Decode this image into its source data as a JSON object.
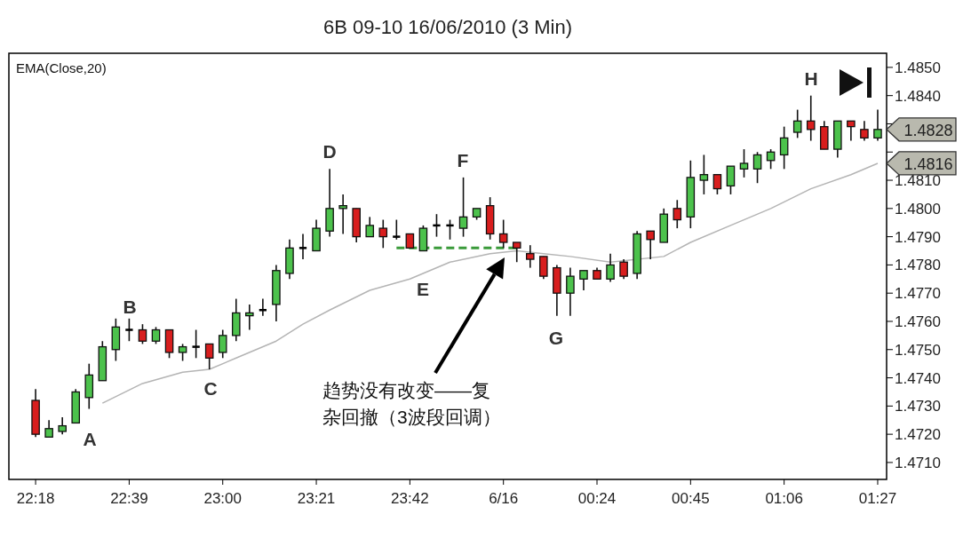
{
  "chart_data": {
    "type": "candlestick",
    "title": "6B 09-10  16/06/2010 (3 Min)",
    "x": [
      "2010-06-15T22:18",
      "2010-06-15T22:21",
      "2010-06-15T22:24",
      "2010-06-15T22:27",
      "2010-06-15T22:30",
      "2010-06-15T22:33",
      "2010-06-15T22:36",
      "2010-06-15T22:39",
      "2010-06-15T22:42",
      "2010-06-15T22:45",
      "2010-06-15T22:48",
      "2010-06-15T22:51",
      "2010-06-15T22:54",
      "2010-06-15T22:57",
      "2010-06-15T23:00",
      "2010-06-15T23:03",
      "2010-06-15T23:06",
      "2010-06-15T23:09",
      "2010-06-15T23:12",
      "2010-06-15T23:15",
      "2010-06-15T23:18",
      "2010-06-15T23:21",
      "2010-06-15T23:24",
      "2010-06-15T23:27",
      "2010-06-15T23:30",
      "2010-06-15T23:33",
      "2010-06-15T23:36",
      "2010-06-15T23:39",
      "2010-06-15T23:42",
      "2010-06-15T23:45",
      "2010-06-15T23:48",
      "2010-06-15T23:51",
      "2010-06-15T23:54",
      "2010-06-15T23:57",
      "2010-06-16T00:00",
      "2010-06-16T00:03",
      "2010-06-16T00:06",
      "2010-06-16T00:09",
      "2010-06-16T00:12",
      "2010-06-16T00:15",
      "2010-06-16T00:18",
      "2010-06-16T00:21",
      "2010-06-16T00:24",
      "2010-06-16T00:27",
      "2010-06-16T00:30",
      "2010-06-16T00:33",
      "2010-06-16T00:36",
      "2010-06-16T00:39",
      "2010-06-16T00:42",
      "2010-06-16T00:45",
      "2010-06-16T00:48",
      "2010-06-16T00:51",
      "2010-06-16T00:54",
      "2010-06-16T00:57",
      "2010-06-16T01:00",
      "2010-06-16T01:03",
      "2010-06-16T01:06",
      "2010-06-16T01:09",
      "2010-06-16T01:12",
      "2010-06-16T01:15",
      "2010-06-16T01:18",
      "2010-06-16T01:21",
      "2010-06-16T01:24",
      "2010-06-16T01:27"
    ],
    "ohlc": [
      [
        1.4732,
        1.4736,
        1.4719,
        1.472
      ],
      [
        1.4719,
        1.4725,
        1.4719,
        1.4722
      ],
      [
        1.4721,
        1.4726,
        1.472,
        1.4723
      ],
      [
        1.4724,
        1.4736,
        1.4724,
        1.4735
      ],
      [
        1.4733,
        1.4745,
        1.4729,
        1.4741
      ],
      [
        1.4739,
        1.4753,
        1.4739,
        1.4751
      ],
      [
        1.475,
        1.4761,
        1.4746,
        1.4758
      ],
      [
        1.4757,
        1.4761,
        1.4753,
        1.4757
      ],
      [
        1.4757,
        1.4759,
        1.4752,
        1.4753
      ],
      [
        1.4753,
        1.4758,
        1.4752,
        1.4757
      ],
      [
        1.4757,
        1.4757,
        1.4747,
        1.4749
      ],
      [
        1.4749,
        1.4752,
        1.4746,
        1.4751
      ],
      [
        1.4751,
        1.4757,
        1.4747,
        1.4751
      ],
      [
        1.4752,
        1.4752,
        1.4743,
        1.4747
      ],
      [
        1.4749,
        1.4757,
        1.4747,
        1.4755
      ],
      [
        1.4755,
        1.4768,
        1.4753,
        1.4763
      ],
      [
        1.4762,
        1.4766,
        1.4757,
        1.4763
      ],
      [
        1.4764,
        1.4768,
        1.4762,
        1.4764
      ],
      [
        1.4766,
        1.478,
        1.476,
        1.4778
      ],
      [
        1.4777,
        1.4789,
        1.4775,
        1.4786
      ],
      [
        1.4786,
        1.4791,
        1.4782,
        1.4786
      ],
      [
        1.4785,
        1.4796,
        1.4785,
        1.4793
      ],
      [
        1.4792,
        1.4814,
        1.479,
        1.48
      ],
      [
        1.48,
        1.4805,
        1.4791,
        1.4801
      ],
      [
        1.48,
        1.48,
        1.4788,
        1.479
      ],
      [
        1.479,
        1.4797,
        1.479,
        1.4794
      ],
      [
        1.4793,
        1.4796,
        1.4786,
        1.479
      ],
      [
        1.479,
        1.4796,
        1.4789,
        1.479
      ],
      [
        1.4791,
        1.4791,
        1.4786,
        1.4786
      ],
      [
        1.4785,
        1.4794,
        1.4785,
        1.4793
      ],
      [
        1.4794,
        1.4798,
        1.479,
        1.4794
      ],
      [
        1.4794,
        1.4796,
        1.4789,
        1.4794
      ],
      [
        1.4793,
        1.4811,
        1.479,
        1.4797
      ],
      [
        1.4797,
        1.48,
        1.4796,
        1.48
      ],
      [
        1.4801,
        1.4804,
        1.4789,
        1.4791
      ],
      [
        1.4791,
        1.4796,
        1.4786,
        1.4788
      ],
      [
        1.4788,
        1.4788,
        1.4781,
        1.4786
      ],
      [
        1.4784,
        1.4787,
        1.4779,
        1.4782
      ],
      [
        1.4783,
        1.4783,
        1.4775,
        1.4776
      ],
      [
        1.4779,
        1.478,
        1.4762,
        1.477
      ],
      [
        1.477,
        1.4779,
        1.4762,
        1.4776
      ],
      [
        1.4775,
        1.4778,
        1.4771,
        1.4778
      ],
      [
        1.4778,
        1.4779,
        1.4775,
        1.4775
      ],
      [
        1.4775,
        1.4784,
        1.4774,
        1.478
      ],
      [
        1.4781,
        1.4782,
        1.4775,
        1.4776
      ],
      [
        1.4777,
        1.4792,
        1.4775,
        1.4791
      ],
      [
        1.4792,
        1.4792,
        1.4782,
        1.4789
      ],
      [
        1.4788,
        1.48,
        1.4788,
        1.4798
      ],
      [
        1.48,
        1.4803,
        1.4793,
        1.4796
      ],
      [
        1.4797,
        1.4817,
        1.4793,
        1.4811
      ],
      [
        1.481,
        1.4819,
        1.4805,
        1.4812
      ],
      [
        1.4812,
        1.4812,
        1.4805,
        1.4807
      ],
      [
        1.4808,
        1.4815,
        1.4805,
        1.4815
      ],
      [
        1.4814,
        1.4821,
        1.4811,
        1.4816
      ],
      [
        1.4814,
        1.482,
        1.4809,
        1.4819
      ],
      [
        1.4817,
        1.4821,
        1.4814,
        1.482
      ],
      [
        1.4819,
        1.4829,
        1.4814,
        1.4825
      ],
      [
        1.4827,
        1.4835,
        1.4825,
        1.4831
      ],
      [
        1.4831,
        1.484,
        1.4824,
        1.4828
      ],
      [
        1.4829,
        1.4831,
        1.4821,
        1.4821
      ],
      [
        1.4821,
        1.4831,
        1.4818,
        1.4831
      ],
      [
        1.4831,
        1.4831,
        1.4824,
        1.4829
      ],
      [
        1.4828,
        1.4831,
        1.4824,
        1.4825
      ],
      [
        1.4825,
        1.4835,
        1.4824,
        1.4828
      ]
    ],
    "colors": [
      "#d81e1e",
      "#4cc24c",
      "#4cc24c",
      "#4cc24c",
      "#4cc24c",
      "#4cc24c",
      "#4cc24c",
      "#000000",
      "#d81e1e",
      "#4cc24c",
      "#d81e1e",
      "#4cc24c",
      "#000000",
      "#d81e1e",
      "#4cc24c",
      "#4cc24c",
      "#4cc24c",
      "#000000",
      "#4cc24c",
      "#4cc24c",
      "#000000",
      "#4cc24c",
      "#4cc24c",
      "#4cc24c",
      "#d81e1e",
      "#4cc24c",
      "#d81e1e",
      "#000000",
      "#d81e1e",
      "#4cc24c",
      "#000000",
      "#000000",
      "#4cc24c",
      "#4cc24c",
      "#d81e1e",
      "#d81e1e",
      "#d81e1e",
      "#d81e1e",
      "#d81e1e",
      "#d81e1e",
      "#4cc24c",
      "#4cc24c",
      "#d81e1e",
      "#4cc24c",
      "#d81e1e",
      "#4cc24c",
      "#d81e1e",
      "#4cc24c",
      "#d81e1e",
      "#4cc24c",
      "#4cc24c",
      "#d81e1e",
      "#4cc24c",
      "#4cc24c",
      "#4cc24c",
      "#4cc24c",
      "#4cc24c",
      "#4cc24c",
      "#d81e1e",
      "#d81e1e",
      "#4cc24c",
      "#d81e1e",
      "#d81e1e",
      "#4cc24c"
    ],
    "series": [
      {
        "type": "line",
        "name": "EMA(Close,20)",
        "color": "#b4b4b4",
        "x": [
          "2010-06-15T22:33",
          "2010-06-15T22:42",
          "2010-06-15T22:51",
          "2010-06-15T22:57",
          "2010-06-15T23:03",
          "2010-06-15T23:12",
          "2010-06-15T23:18",
          "2010-06-15T23:24",
          "2010-06-15T23:33",
          "2010-06-15T23:42",
          "2010-06-15T23:51",
          "2010-06-16T00:00",
          "2010-06-16T00:06",
          "2010-06-16T00:12",
          "2010-06-16T00:18",
          "2010-06-16T00:27",
          "2010-06-16T00:39",
          "2010-06-16T00:45",
          "2010-06-16T00:54",
          "2010-06-16T01:03",
          "2010-06-16T01:12",
          "2010-06-16T01:21",
          "2010-06-16T01:27"
        ],
        "values": [
          1.4731,
          1.4738,
          1.4742,
          1.4743,
          1.4747,
          1.4753,
          1.4759,
          1.4764,
          1.4771,
          1.4775,
          1.4781,
          1.4784,
          1.4785,
          1.4784,
          1.4783,
          1.4781,
          1.4783,
          1.4788,
          1.4794,
          1.48,
          1.4807,
          1.4812,
          1.4816
        ]
      },
      {
        "type": "line",
        "color": "#3a9a3a",
        "line_style": "dashed",
        "x": [
          "2010-06-15T23:39",
          "2010-06-16T00:06"
        ],
        "values": [
          1.4786,
          1.4786
        ]
      }
    ],
    "xlim": [
      "2010-06-15T22:12",
      "2010-06-16T01:29"
    ],
    "ylim": [
      1.4704,
      1.4855
    ],
    "xticks": [
      {
        "value": "2010-06-15T22:18",
        "label": "22:18"
      },
      {
        "value": "2010-06-15T22:39",
        "label": "22:39"
      },
      {
        "value": "2010-06-15T23:00",
        "label": "23:00"
      },
      {
        "value": "2010-06-15T23:21",
        "label": "23:21"
      },
      {
        "value": "2010-06-15T23:42",
        "label": "23:42"
      },
      {
        "value": "2010-06-16T00:03",
        "label": "6/16"
      },
      {
        "value": "2010-06-16T00:24",
        "label": "00:24"
      },
      {
        "value": "2010-06-16T00:45",
        "label": "00:45"
      },
      {
        "value": "2010-06-16T01:06",
        "label": "01:06"
      },
      {
        "value": "2010-06-16T01:27",
        "label": "01:27"
      }
    ],
    "yticks": [
      {
        "value": 1.471,
        "label": "1.4710"
      },
      {
        "value": 1.472,
        "label": "1.4720"
      },
      {
        "value": 1.473,
        "label": "1.4730"
      },
      {
        "value": 1.474,
        "label": "1.4740"
      },
      {
        "value": 1.475,
        "label": "1.4750"
      },
      {
        "value": 1.476,
        "label": "1.4760"
      },
      {
        "value": 1.477,
        "label": "1.4770"
      },
      {
        "value": 1.478,
        "label": "1.4780"
      },
      {
        "value": 1.479,
        "label": "1.4790"
      },
      {
        "value": 1.48,
        "label": "1.4800"
      },
      {
        "value": 1.481,
        "label": "1.4810"
      },
      {
        "value": 1.482,
        "label": null
      },
      {
        "value": 1.483,
        "label": null
      },
      {
        "value": 1.484,
        "label": "1.4840"
      },
      {
        "value": 1.485,
        "label": "1.4850"
      }
    ],
    "annotations": [
      "A",
      "B",
      "C",
      "D",
      "E",
      "F",
      "G",
      "H",
      "趋势没有改变——复杂回撤（3波段回调）",
      "1.4828",
      "1.4816"
    ]
  }
}
